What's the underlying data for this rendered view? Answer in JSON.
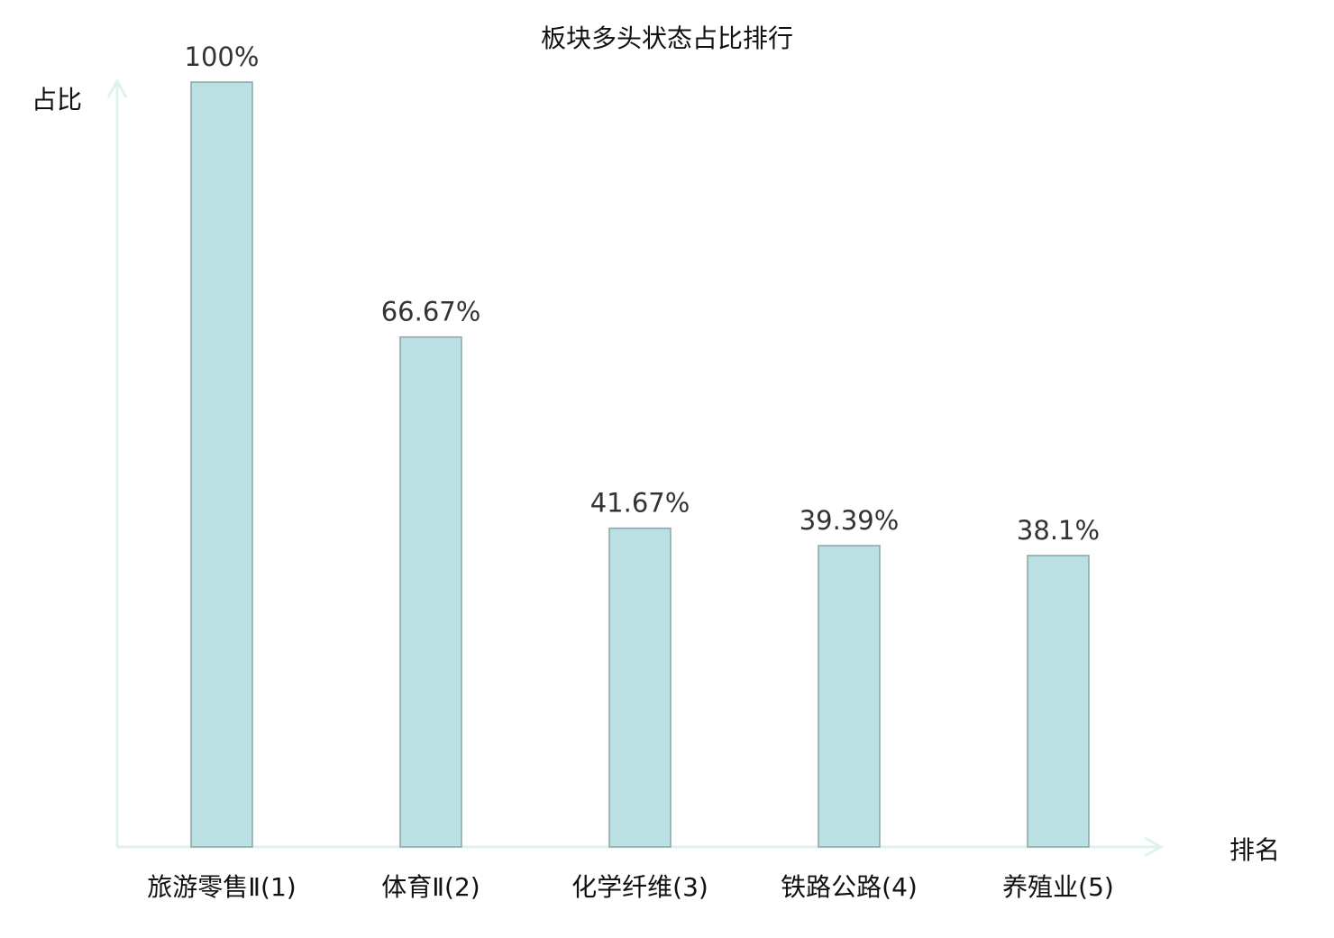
{
  "chart_data": {
    "type": "bar",
    "title": "板块多头状态占比排行",
    "xlabel": "排名",
    "ylabel": "占比",
    "categories": [
      "旅游零售Ⅱ(1)",
      "体育Ⅱ(2)",
      "化学纤维(3)",
      "铁路公路(4)",
      "养殖业(5)"
    ],
    "values": [
      100,
      66.67,
      41.67,
      39.39,
      38.1
    ],
    "value_labels": [
      "100%",
      "66.67%",
      "41.67%",
      "39.39%",
      "38.1%"
    ],
    "ylim": [
      0,
      100
    ],
    "grid": false,
    "bar_color": "#bbe0e3",
    "bar_edge_color": "#8aa5a6",
    "axis_color": "#dff2f0",
    "highlight_category_index": 3,
    "highlight_color": "#ff0000",
    "category_color": "#111111"
  }
}
